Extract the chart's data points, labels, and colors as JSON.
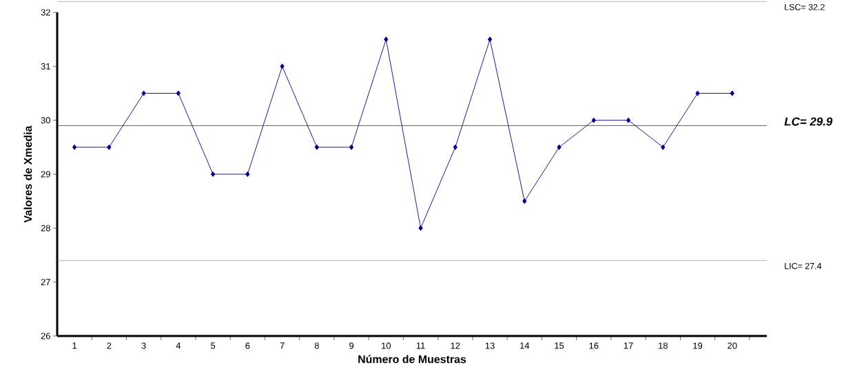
{
  "chart_data": {
    "type": "line",
    "xlabel": "Número de Muestras",
    "ylabel": "Valores de Xmedia",
    "categories": [
      "1",
      "2",
      "3",
      "4",
      "5",
      "6",
      "7",
      "8",
      "9",
      "10",
      "11",
      "12",
      "13",
      "14",
      "15",
      "16",
      "17",
      "18",
      "19",
      "20"
    ],
    "series": [
      {
        "color": "#000080",
        "values": [
          29.5,
          29.5,
          30.5,
          30.5,
          29,
          29,
          31,
          29.5,
          29.5,
          31.5,
          28,
          29.5,
          31.5,
          28.5,
          29.5,
          30,
          30,
          29.5,
          30.5,
          30.5
        ]
      }
    ],
    "ylim": [
      26,
      32
    ],
    "yticks": [
      26,
      27,
      28,
      29,
      30,
      31,
      32
    ],
    "marker": "diamond",
    "line_style": "solid",
    "ref_lines": [
      {
        "axis": "y",
        "value": 32.2,
        "label": "LSC= 32.2",
        "color": "#808080"
      },
      {
        "axis": "y",
        "value": 29.9,
        "label": "LC= 29.9",
        "color": "#000000"
      },
      {
        "axis": "y",
        "value": 27.4,
        "label": "LIC= 27.4",
        "color": "#808080"
      }
    ]
  }
}
